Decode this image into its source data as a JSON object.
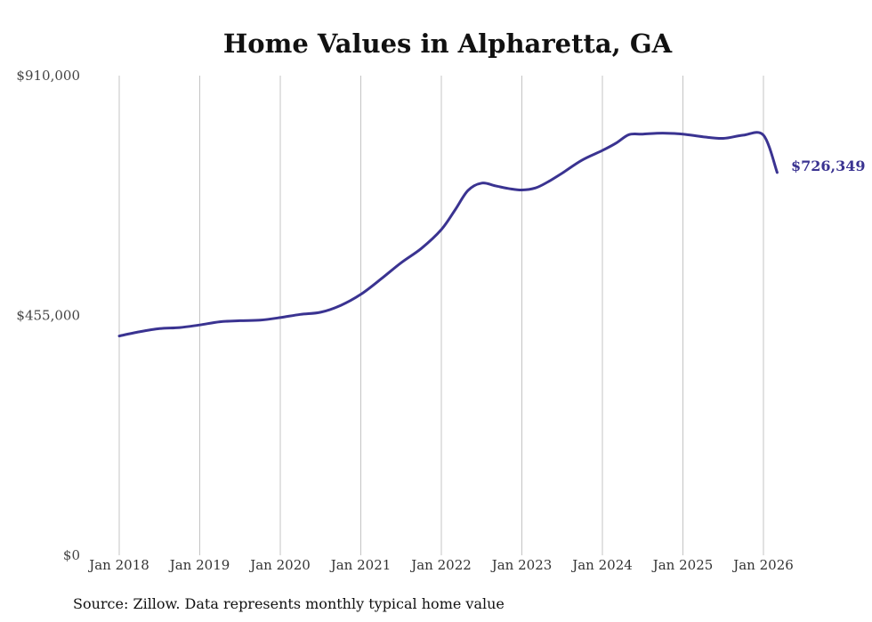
{
  "chart_data": {
    "type": "line",
    "title": "Home Values in Alpharetta, GA",
    "xlabel": "",
    "ylabel": "",
    "ylim": [
      0,
      910000
    ],
    "y_ticks": [
      {
        "value": 0,
        "label": "$0"
      },
      {
        "value": 455000,
        "label": "$455,000"
      },
      {
        "value": 910000,
        "label": "$910,000"
      }
    ],
    "x_ticks": [
      {
        "value": 2018.0,
        "label": "Jan 2018"
      },
      {
        "value": 2019.0,
        "label": "Jan 2019"
      },
      {
        "value": 2020.0,
        "label": "Jan 2020"
      },
      {
        "value": 2021.0,
        "label": "Jan 2021"
      },
      {
        "value": 2022.0,
        "label": "Jan 2022"
      },
      {
        "value": 2023.0,
        "label": "Jan 2023"
      },
      {
        "value": 2024.0,
        "label": "Jan 2024"
      },
      {
        "value": 2025.0,
        "label": "Jan 2025"
      },
      {
        "value": 2026.0,
        "label": "Jan 2026"
      }
    ],
    "xlim": [
      2018.0,
      2026.17
    ],
    "grid": "vertical",
    "series": [
      {
        "name": "Typical home value",
        "color": "#3a3391",
        "x": [
          2018.0,
          2018.25,
          2018.5,
          2018.75,
          2019.0,
          2019.25,
          2019.5,
          2019.75,
          2020.0,
          2020.25,
          2020.5,
          2020.75,
          2021.0,
          2021.25,
          2021.5,
          2021.75,
          2022.0,
          2022.17,
          2022.33,
          2022.5,
          2022.67,
          2022.83,
          2023.0,
          2023.17,
          2023.33,
          2023.5,
          2023.75,
          2024.0,
          2024.17,
          2024.33,
          2024.5,
          2024.75,
          2025.0,
          2025.25,
          2025.5,
          2025.75,
          2026.0,
          2026.17
        ],
        "values": [
          416000,
          424000,
          430000,
          432000,
          437000,
          443000,
          445000,
          446000,
          451000,
          457000,
          461000,
          474000,
          495000,
          524000,
          555000,
          582000,
          618000,
          655000,
          692000,
          706000,
          701000,
          696000,
          693000,
          697000,
          709000,
          725000,
          750000,
          768000,
          782000,
          798000,
          799000,
          801000,
          799000,
          794000,
          791000,
          797000,
          797000,
          726349
        ]
      }
    ],
    "end_label": "$726,349",
    "end_value": 726349,
    "source": "Source: Zillow. Data represents monthly typical home value"
  }
}
